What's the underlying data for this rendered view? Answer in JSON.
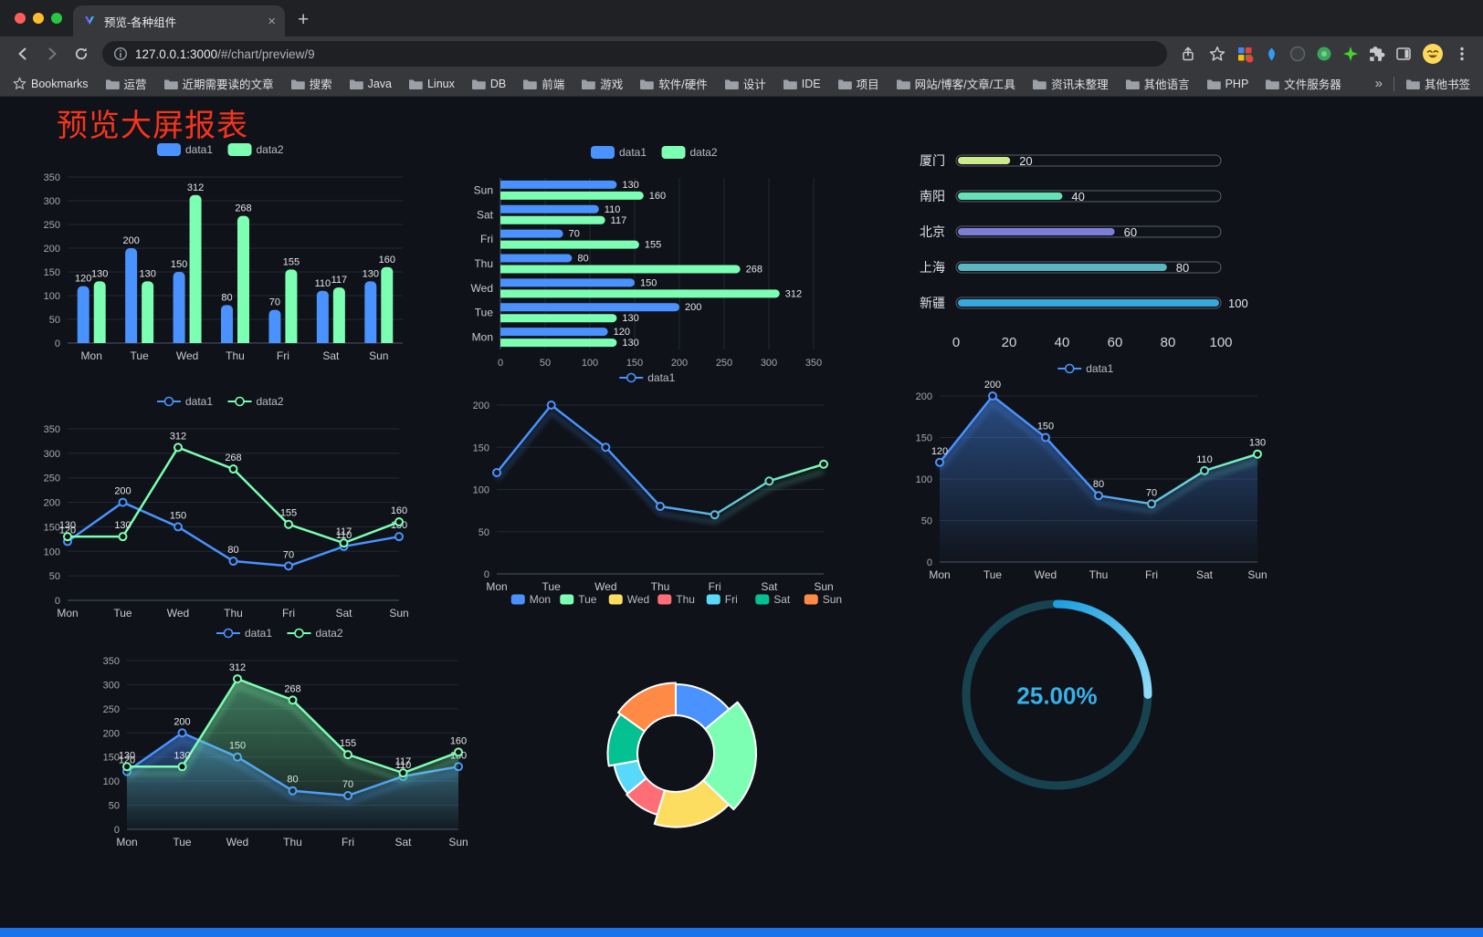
{
  "browser": {
    "tab_title": "预览-各种组件",
    "tab_close_label": "×",
    "new_tab_label": "+",
    "url_host": "127.0.0.1:3000",
    "url_path": "/#/chart/preview/9",
    "bookmarks_label": "Bookmarks",
    "bookmarks": [
      "运营",
      "近期需要读的文章",
      "搜索",
      "Java",
      "Linux",
      "DB",
      "前端",
      "游戏",
      "软件/硬件",
      "设计",
      "IDE",
      "项目",
      "网站/博客/文章/工具",
      "资讯未整理",
      "其他语言",
      "PHP",
      "文件服务器"
    ],
    "bookmarks_overflow": "»",
    "other_bookmarks_label": "其他书签"
  },
  "page": {
    "title": "预览大屏报表",
    "title_color": "#f5341c",
    "background": "#0f1218",
    "accent_bar_color": "#1a73e8"
  },
  "chart_data": [
    {
      "id": "grouped-bar-vertical",
      "type": "bar",
      "categories": [
        "Mon",
        "Tue",
        "Wed",
        "Thu",
        "Fri",
        "Sat",
        "Sun"
      ],
      "series": [
        {
          "name": "data1",
          "color": "#4992ff",
          "values": [
            120,
            200,
            150,
            80,
            70,
            110,
            130
          ]
        },
        {
          "name": "data2",
          "color": "#7cffb2",
          "values": [
            130,
            130,
            312,
            268,
            155,
            117,
            160
          ]
        }
      ],
      "ylim": [
        0,
        350
      ],
      "ytick_step": 50,
      "show_labels": true,
      "legend_position": "top"
    },
    {
      "id": "grouped-bar-horizontal",
      "type": "barh",
      "categories": [
        "Mon",
        "Tue",
        "Wed",
        "Thu",
        "Fri",
        "Sat",
        "Sun"
      ],
      "series": [
        {
          "name": "data1",
          "color": "#4992ff",
          "values": [
            120,
            200,
            150,
            80,
            70,
            110,
            130
          ]
        },
        {
          "name": "data2",
          "color": "#7cffb2",
          "values": [
            130,
            130,
            312,
            268,
            155,
            117,
            160
          ]
        }
      ],
      "xlim": [
        0,
        350
      ],
      "xtick_step": 50,
      "show_labels": true,
      "legend_position": "top"
    },
    {
      "id": "capsule-progress-bars",
      "type": "capsule",
      "categories": [
        "厦门",
        "南阳",
        "北京",
        "上海",
        "新疆"
      ],
      "values": [
        20,
        40,
        60,
        80,
        100
      ],
      "colors": [
        "#cdeb8b",
        "#63e2b7",
        "#7b7fd6",
        "#58b7c2",
        "#35a8e0"
      ],
      "xlim": [
        0,
        100
      ],
      "xticks": [
        0,
        20,
        40,
        60,
        80,
        100
      ]
    },
    {
      "id": "line-two-series",
      "type": "line",
      "categories": [
        "Mon",
        "Tue",
        "Wed",
        "Thu",
        "Fri",
        "Sat",
        "Sun"
      ],
      "series": [
        {
          "name": "data1",
          "color": "#4992ff",
          "values": [
            120,
            200,
            150,
            80,
            70,
            110,
            130
          ]
        },
        {
          "name": "data2",
          "color": "#7cffb2",
          "values": [
            130,
            130,
            312,
            268,
            155,
            117,
            160
          ]
        }
      ],
      "ylim": [
        0,
        350
      ],
      "ytick_step": 50,
      "show_labels": true,
      "shadow": false
    },
    {
      "id": "line-gradient",
      "type": "line",
      "categories": [
        "Mon",
        "Tue",
        "Wed",
        "Thu",
        "Fri",
        "Sat",
        "Sun"
      ],
      "series": [
        {
          "name": "data1",
          "color": "#4992ff",
          "color_end": "#7cffb2",
          "values": [
            120,
            200,
            150,
            80,
            70,
            110,
            130
          ]
        }
      ],
      "ylim": [
        0,
        200
      ],
      "ytick_step": 50,
      "show_labels": false,
      "shadow": true
    },
    {
      "id": "line-area",
      "type": "line",
      "categories": [
        "Mon",
        "Tue",
        "Wed",
        "Thu",
        "Fri",
        "Sat",
        "Sun"
      ],
      "series": [
        {
          "name": "data1",
          "color": "#4992ff",
          "color_end": "#7cffb2",
          "area": true,
          "values": [
            120,
            200,
            150,
            80,
            70,
            110,
            130
          ]
        }
      ],
      "ylim": [
        0,
        200
      ],
      "ytick_step": 50,
      "show_labels": true,
      "shadow": true
    },
    {
      "id": "line-two-series-area",
      "type": "line",
      "categories": [
        "Mon",
        "Tue",
        "Wed",
        "Thu",
        "Fri",
        "Sat",
        "Sun"
      ],
      "series": [
        {
          "name": "data1",
          "color": "#4992ff",
          "area": true,
          "values": [
            120,
            200,
            150,
            80,
            70,
            110,
            130
          ]
        },
        {
          "name": "data2",
          "color": "#7cffb2",
          "area": true,
          "values": [
            130,
            130,
            312,
            268,
            155,
            117,
            160
          ]
        }
      ],
      "ylim": [
        0,
        350
      ],
      "ytick_step": 50,
      "show_labels": true,
      "shadow": true
    },
    {
      "id": "rose-donut",
      "type": "rose",
      "categories": [
        "Mon",
        "Tue",
        "Wed",
        "Thu",
        "Fri",
        "Sat",
        "Sun"
      ],
      "values": [
        120,
        200,
        150,
        80,
        70,
        110,
        130
      ],
      "colors": [
        "#4992ff",
        "#7cffb2",
        "#fddd60",
        "#ff6e76",
        "#58d9f9",
        "#05c091",
        "#ff8a45"
      ],
      "legend_position": "top"
    },
    {
      "id": "ring-progress",
      "type": "gauge",
      "percent": 25,
      "value_label": "25.00%",
      "color_start": "#1e9fe0",
      "color_end": "#8fdcf8",
      "track_color": "#17424f",
      "text_color": "#38b0ea"
    }
  ]
}
